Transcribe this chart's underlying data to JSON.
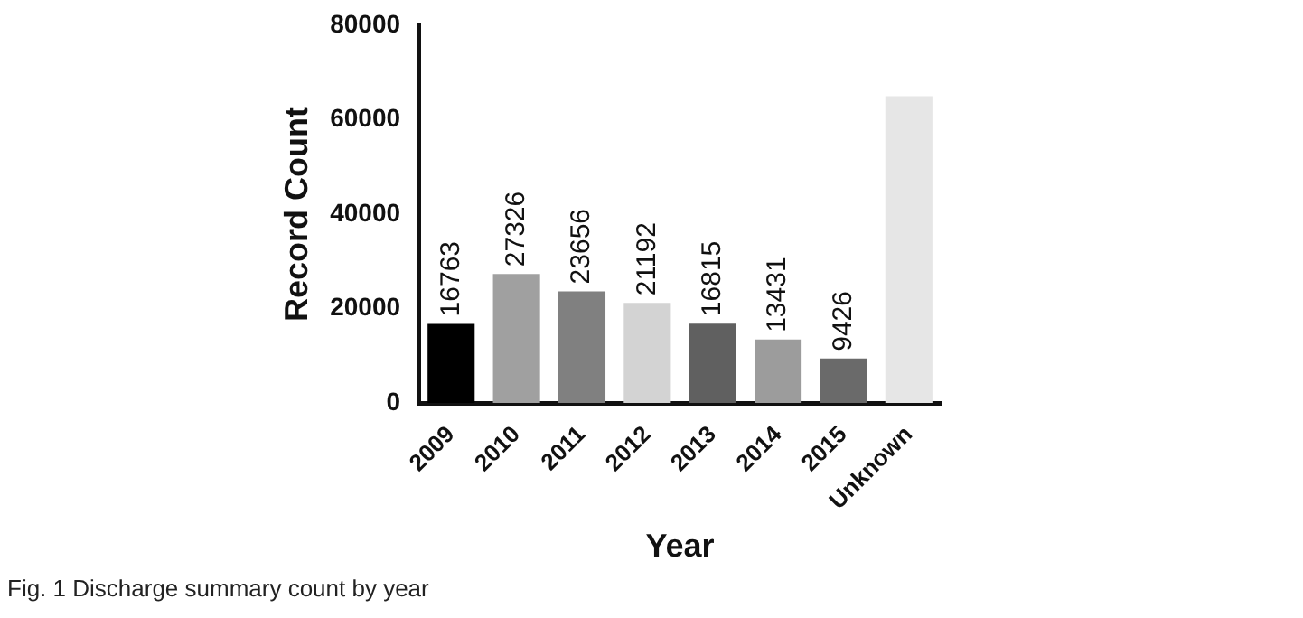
{
  "chart_data": {
    "type": "bar",
    "xlabel": "Year",
    "ylabel": "Record Count",
    "categories": [
      "2009",
      "2010",
      "2011",
      "2012",
      "2013",
      "2014",
      "2015",
      "Unknown"
    ],
    "values": [
      16763,
      27326,
      23656,
      21192,
      16815,
      13431,
      9426,
      65000
    ],
    "colors": [
      "#000000",
      "#a0a0a0",
      "#808080",
      "#d3d3d3",
      "#606060",
      "#9c9c9c",
      "#6a6a6a",
      "#e6e6e6"
    ],
    "value_labels": [
      "16763",
      "27326",
      "23656",
      "21192",
      "16815",
      "13431",
      "9426",
      null
    ],
    "ylim": [
      0,
      80000
    ],
    "yticks": [
      0,
      20000,
      40000,
      60000,
      80000
    ],
    "grid": false,
    "legend": false,
    "annotations": [
      "Fig. 1  Discharge summary count by year"
    ]
  }
}
